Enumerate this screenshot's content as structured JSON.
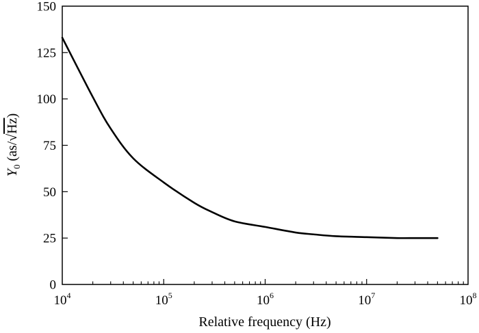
{
  "chart_data": {
    "type": "line",
    "xlabel": "Relative frequency (Hz)",
    "ylabel": {
      "symbol": "Y",
      "subscript": "0",
      "unit_prefix": " (as/",
      "unit_radicand": "Hz",
      "unit_suffix": ")"
    },
    "x_scale": "log",
    "xlim": [
      10000,
      100000000
    ],
    "ylim": [
      0,
      150
    ],
    "x_ticks": [
      {
        "base": "10",
        "exp": "4",
        "value": 10000
      },
      {
        "base": "10",
        "exp": "5",
        "value": 100000
      },
      {
        "base": "10",
        "exp": "6",
        "value": 1000000
      },
      {
        "base": "10",
        "exp": "7",
        "value": 10000000
      },
      {
        "base": "10",
        "exp": "8",
        "value": 100000000
      }
    ],
    "y_ticks": [
      "0",
      "25",
      "50",
      "75",
      "100",
      "125",
      "150"
    ],
    "grid": false,
    "series": [
      {
        "color": "#000000",
        "x": [
          10000,
          20000,
          30000,
          50000,
          100000,
          200000,
          300000,
          500000,
          1000000,
          2000000,
          3000000,
          5000000,
          10000000,
          20000000,
          30000000,
          50000000
        ],
        "y": [
          133,
          101,
          84,
          68,
          55,
          44,
          39,
          34,
          31,
          28,
          27,
          26,
          25.5,
          25,
          25,
          25
        ]
      }
    ]
  }
}
